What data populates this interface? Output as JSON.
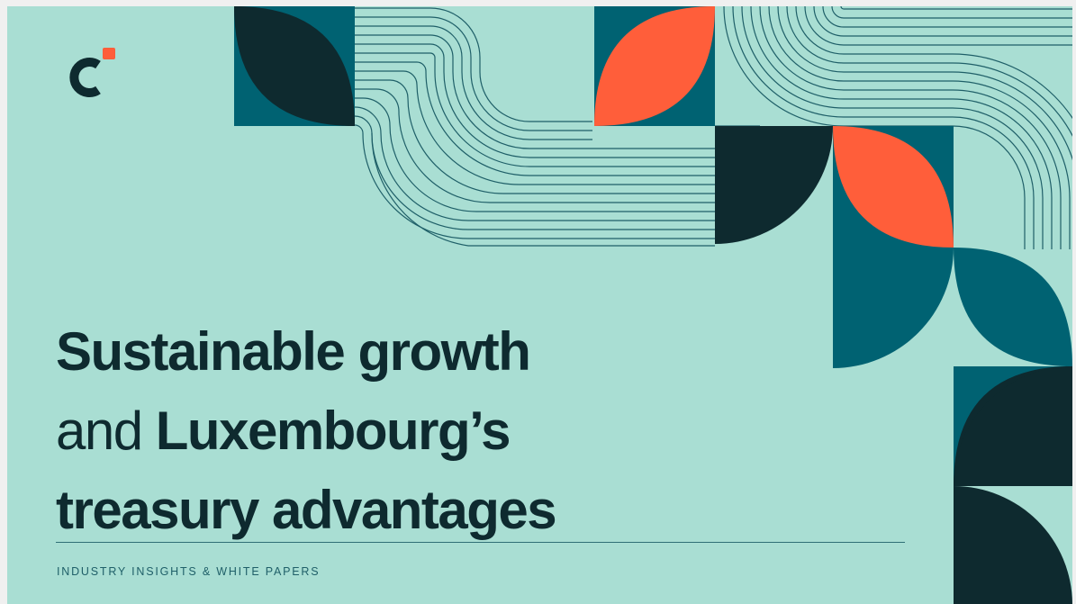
{
  "brand": {
    "logo_icon": "c-bracket-logo-icon",
    "colors": {
      "background": "#a9ded3",
      "dark": "#0e2a2f",
      "teal": "#006272",
      "orange": "#ff5e3a"
    }
  },
  "title": {
    "line1": "Sustainable growth",
    "line2_light": "and",
    "line2_bold": "Luxembourg’s",
    "line3": "treasury advantages"
  },
  "category_label": "INDUSTRY INSIGHTS & WHITE PAPERS"
}
